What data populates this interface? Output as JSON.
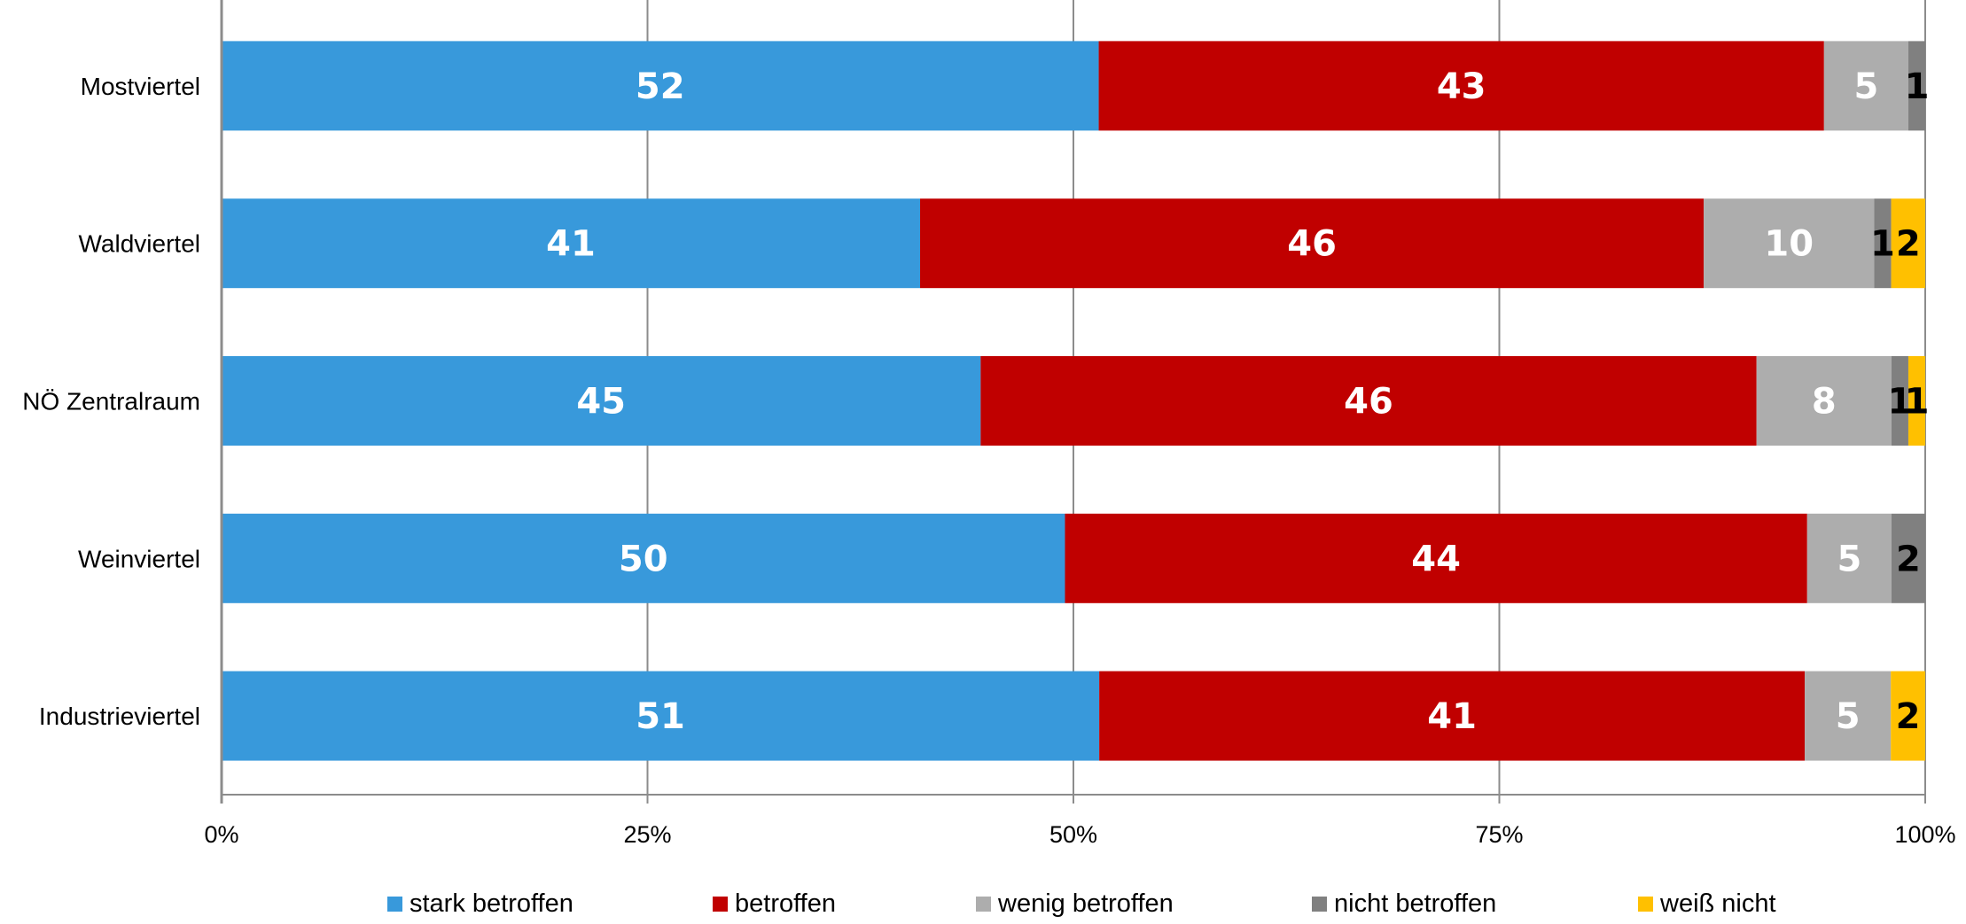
{
  "chart_data": {
    "type": "bar",
    "orientation": "horizontal",
    "stacked": true,
    "normalized": true,
    "categories": [
      "Mostviertel",
      "Waldviertel",
      "NÖ Zentralraum",
      "Weinviertel",
      "Industrieviertel"
    ],
    "series": [
      {
        "name": "stark betroffen",
        "color": "#3899db",
        "label_color": "#ffffff",
        "values": [
          52,
          41,
          45,
          50,
          51
        ]
      },
      {
        "name": "betroffen",
        "color": "#c00000",
        "label_color": "#ffffff",
        "values": [
          43,
          46,
          46,
          44,
          41
        ]
      },
      {
        "name": "wenig betroffen",
        "color": "#adadad",
        "label_color": "#ffffff",
        "values": [
          5,
          10,
          8,
          5,
          5
        ]
      },
      {
        "name": "nicht betroffen",
        "color": "#808080",
        "label_color": "#000000",
        "values": [
          1,
          1,
          1,
          2,
          0
        ]
      },
      {
        "name": "weiß nicht",
        "color": "#ffc000",
        "label_color": "#000000",
        "values": [
          0,
          2,
          1,
          0,
          2
        ]
      }
    ],
    "x_ticks": [
      "0%",
      "25%",
      "50%",
      "75%",
      "100%"
    ],
    "xlim": [
      0,
      100
    ],
    "grid": true,
    "legend": "bottom"
  }
}
